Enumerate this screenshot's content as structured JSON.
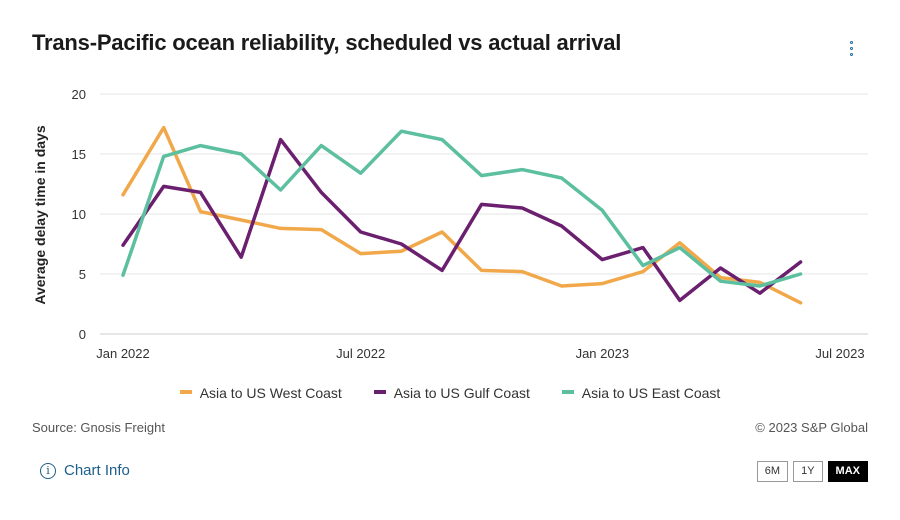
{
  "title": "Trans-Pacific ocean reliability, scheduled vs actual arrival",
  "menu_icon": "vertical-dots-icon",
  "source": "Source: Gnosis Freight",
  "copyright": "© 2023 S&P Global",
  "chart_info": {
    "icon": "info-icon",
    "label": "Chart Info"
  },
  "range_buttons": {
    "six_months": "6M",
    "one_year": "1Y",
    "max": "MAX",
    "selected": "MAX"
  },
  "chart_data": {
    "type": "line",
    "title": "Trans-Pacific ocean reliability, scheduled vs actual arrival",
    "xlabel": "",
    "ylabel": "Average delay time in days",
    "xlim": [
      "2022-01-01",
      "2023-07-01"
    ],
    "ylim": [
      0,
      20
    ],
    "yticks": [
      0,
      5,
      10,
      15,
      20
    ],
    "xticks": [
      {
        "date": "2022-01-01",
        "label": "Jan 2022"
      },
      {
        "date": "2022-07-01",
        "label": "Jul 2022"
      },
      {
        "date": "2023-01-01",
        "label": "Jan 2023"
      },
      {
        "date": "2023-07-01",
        "label": "Jul 2023"
      }
    ],
    "grid": true,
    "legend_position": "bottom",
    "x": [
      "2022-01-01",
      "2022-02-01",
      "2022-03-01",
      "2022-04-01",
      "2022-05-01",
      "2022-06-01",
      "2022-07-01",
      "2022-08-01",
      "2022-09-01",
      "2022-10-01",
      "2022-11-01",
      "2022-12-01",
      "2023-01-01",
      "2023-02-01",
      "2023-03-01",
      "2023-04-01",
      "2023-05-01",
      "2023-06-01"
    ],
    "series": [
      {
        "name": "Asia to US West Coast",
        "color": "#f0a84a",
        "values": [
          11.6,
          17.2,
          10.2,
          9.5,
          8.8,
          8.7,
          6.7,
          6.9,
          8.5,
          5.3,
          5.2,
          4.0,
          4.2,
          5.2,
          7.6,
          4.7,
          4.3,
          2.6
        ]
      },
      {
        "name": "Asia to US Gulf Coast",
        "color": "#6b1f6f",
        "values": [
          7.4,
          12.3,
          11.8,
          6.4,
          16.2,
          11.8,
          8.5,
          7.5,
          5.3,
          10.8,
          10.5,
          9.0,
          6.2,
          7.2,
          2.8,
          5.5,
          3.4,
          6.0
        ]
      },
      {
        "name": "Asia to US East Coast",
        "color": "#5cbf9f",
        "values": [
          4.9,
          14.8,
          15.7,
          15.0,
          12.0,
          15.7,
          13.4,
          16.9,
          16.2,
          13.2,
          13.7,
          13.0,
          10.3,
          5.7,
          7.2,
          4.4,
          4.0,
          5.0
        ]
      }
    ]
  }
}
